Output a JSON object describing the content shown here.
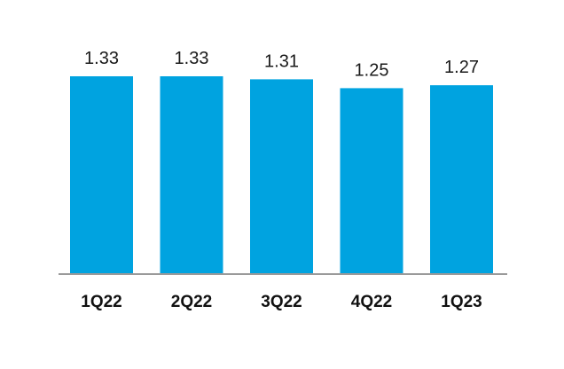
{
  "chart_data": {
    "type": "bar",
    "categories": [
      "1Q22",
      "2Q22",
      "3Q22",
      "4Q22",
      "1Q23"
    ],
    "values": [
      1.33,
      1.33,
      1.31,
      1.25,
      1.27
    ],
    "value_labels": [
      "1.33",
      "1.33",
      "1.31",
      "1.25",
      "1.27"
    ],
    "title": "",
    "xlabel": "",
    "ylabel": "",
    "ylim": [
      0,
      1.33
    ],
    "grid": false,
    "legend": "none",
    "bar_color": "#00a3e0",
    "axis_color": "#9a9a9a"
  }
}
